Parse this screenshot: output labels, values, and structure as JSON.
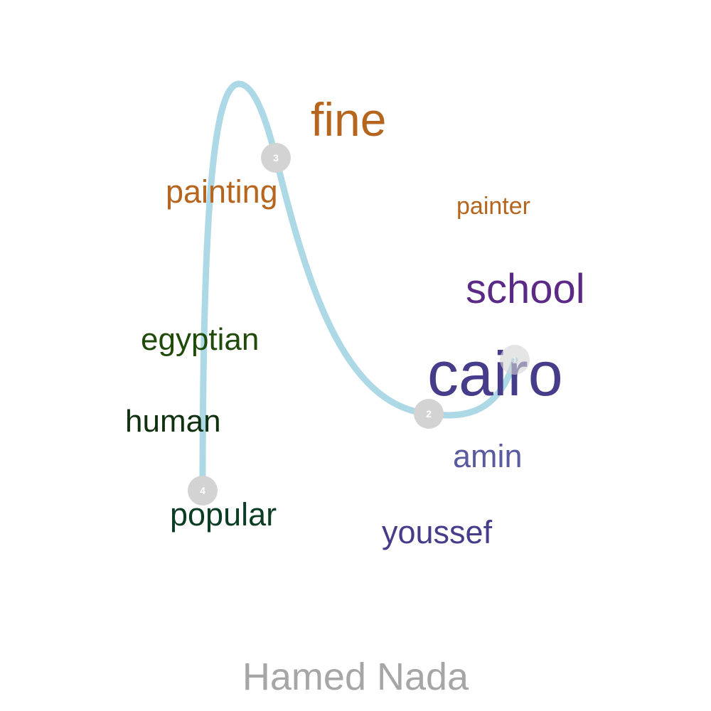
{
  "colors": {
    "path": "#add8e6",
    "node": "#d3d3d3",
    "caption": "#a6a6a6"
  },
  "words": [
    {
      "text": "fine",
      "color": "#b5651d"
    },
    {
      "text": "painting",
      "color": "#b5651d"
    },
    {
      "text": "painter",
      "color": "#b5651d"
    },
    {
      "text": "school",
      "color": "#5b2a86"
    },
    {
      "text": "egyptian",
      "color": "#1f4a0a"
    },
    {
      "text": "cairo",
      "color": "#463d8a"
    },
    {
      "text": "human",
      "color": "#0f3110"
    },
    {
      "text": "amin",
      "color": "#5a5aa0"
    },
    {
      "text": "popular",
      "color": "#0b3d24"
    },
    {
      "text": "youssef",
      "color": "#463d8a"
    }
  ],
  "nodes": [
    {
      "label": "1"
    },
    {
      "label": "2"
    },
    {
      "label": "3"
    },
    {
      "label": "4"
    }
  ],
  "caption": "Hamed Nada"
}
